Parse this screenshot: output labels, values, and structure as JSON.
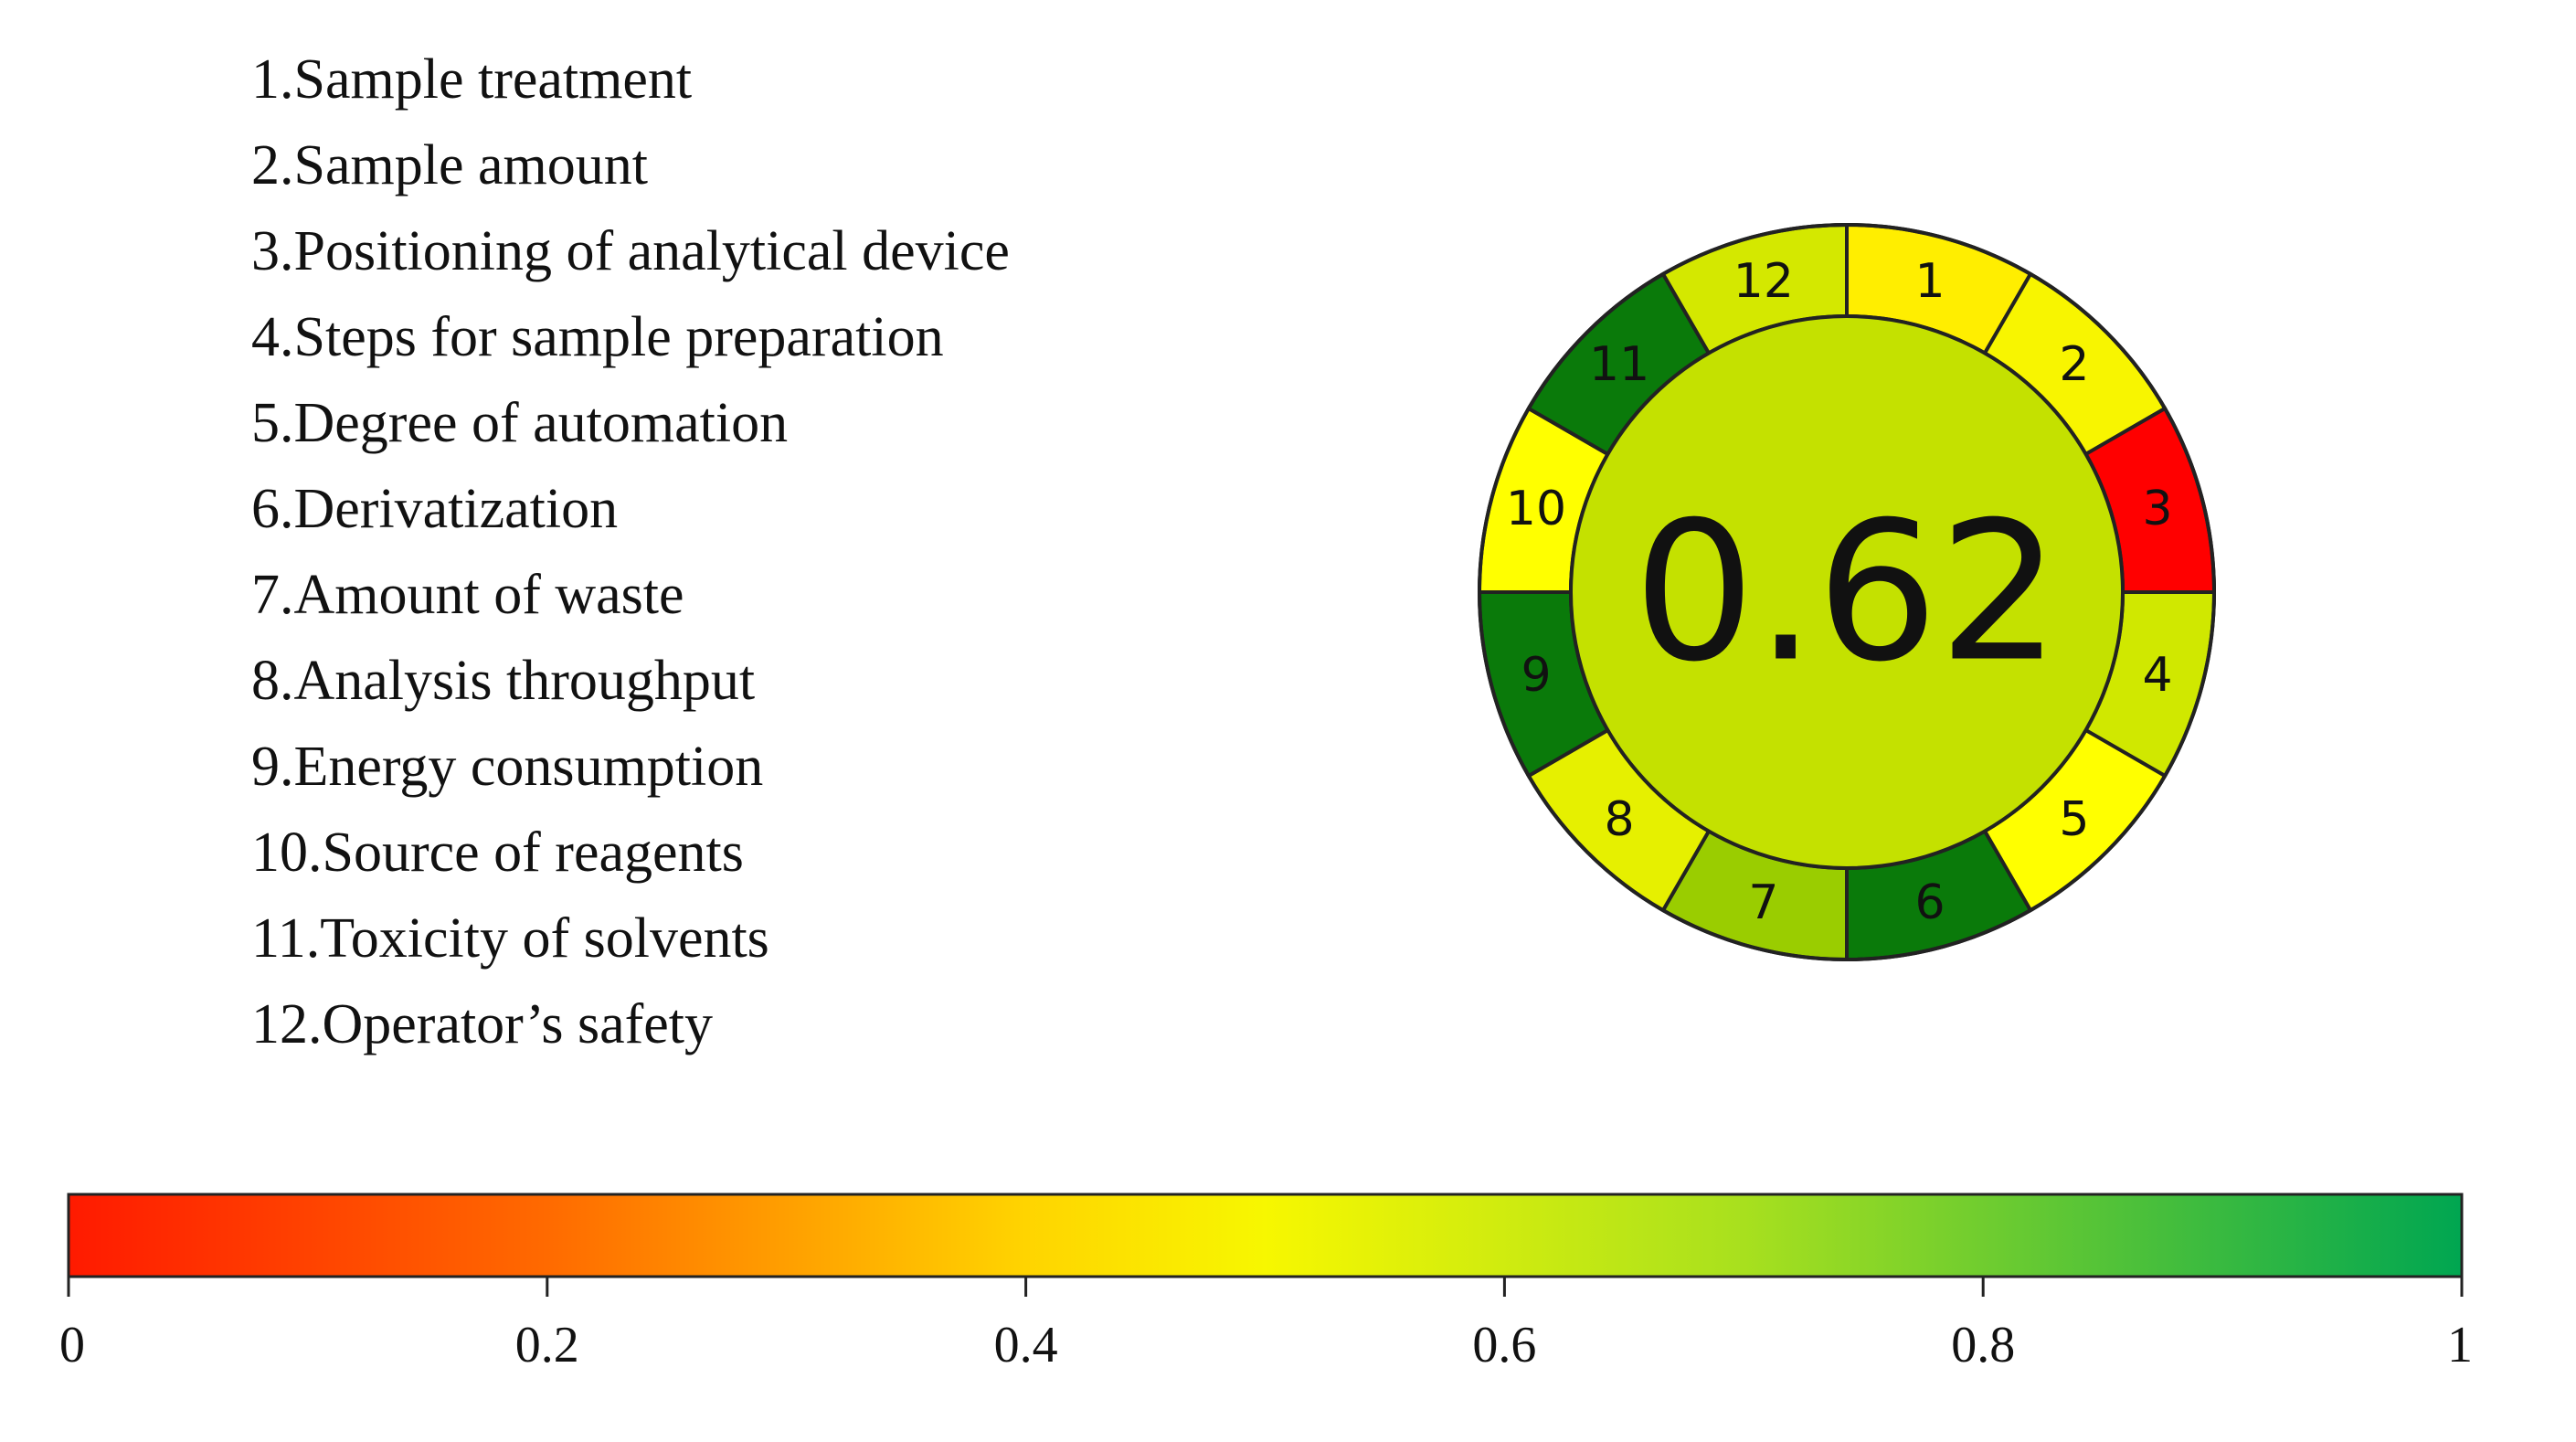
{
  "criteria": [
    "1.Sample treatment",
    "2.Sample amount",
    "3.Positioning of analytical device",
    "4.Steps for sample preparation",
    "5.Degree of automation",
    "6.Derivatization",
    "7.Amount of waste",
    "8.Analysis throughput",
    "9.Energy consumption",
    "10.Source of reagents",
    "11.Toxicity of solvents",
    "12.Operator’s safety"
  ],
  "wheel": {
    "score": "0.62",
    "center_color": "#c4e100",
    "segments": [
      {
        "label": "1",
        "color": "#ffee00"
      },
      {
        "label": "2",
        "color": "#f8f500"
      },
      {
        "label": "3",
        "color": "#ff0000"
      },
      {
        "label": "4",
        "color": "#d0e800"
      },
      {
        "label": "5",
        "color": "#ffff00"
      },
      {
        "label": "6",
        "color": "#0a7a0a"
      },
      {
        "label": "7",
        "color": "#9acd00"
      },
      {
        "label": "8",
        "color": "#e6f000"
      },
      {
        "label": "9",
        "color": "#0a7a0a"
      },
      {
        "label": "10",
        "color": "#ffff00"
      },
      {
        "label": "11",
        "color": "#0a7a0a"
      },
      {
        "label": "12",
        "color": "#d4e800"
      }
    ]
  },
  "color_scale": {
    "ticks": [
      {
        "value": 0,
        "label": "0"
      },
      {
        "value": 0.2,
        "label": "0.2"
      },
      {
        "value": 0.4,
        "label": "0.4"
      },
      {
        "value": 0.6,
        "label": "0.6"
      },
      {
        "value": 0.8,
        "label": "0.8"
      },
      {
        "value": 1,
        "label": "1"
      }
    ],
    "gradient_stops": [
      {
        "offset": 0,
        "color": "#ff1a00"
      },
      {
        "offset": 0.2,
        "color": "#ff6a00"
      },
      {
        "offset": 0.4,
        "color": "#ffd400"
      },
      {
        "offset": 0.5,
        "color": "#f7f700"
      },
      {
        "offset": 0.7,
        "color": "#a8e01e"
      },
      {
        "offset": 1,
        "color": "#00a651"
      }
    ]
  }
}
